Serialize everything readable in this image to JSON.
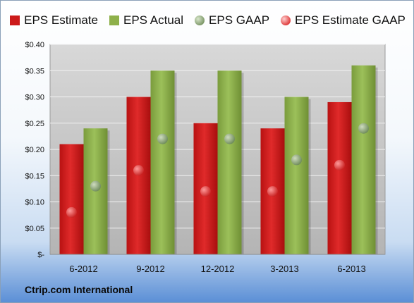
{
  "chart_data": {
    "type": "bar",
    "categories": [
      "6-2012",
      "9-2012",
      "12-2012",
      "3-2013",
      "6-2013"
    ],
    "series": [
      {
        "name": "EPS Estimate",
        "kind": "bar",
        "color": "#cc1a1a",
        "values": [
          0.21,
          0.3,
          0.25,
          0.24,
          0.29
        ]
      },
      {
        "name": "EPS Actual",
        "kind": "bar",
        "color": "#8eb04a",
        "values": [
          0.24,
          0.35,
          0.35,
          0.3,
          0.36
        ]
      },
      {
        "name": "EPS GAAP",
        "kind": "dot",
        "color": "#7f9a6a",
        "values": [
          0.13,
          0.22,
          0.22,
          0.18,
          0.24
        ]
      },
      {
        "name": "EPS Estimate GAAP",
        "kind": "dot",
        "color": "#e04040",
        "values": [
          0.08,
          0.16,
          0.12,
          0.12,
          0.17
        ]
      }
    ],
    "yticks": [
      "$-",
      "$0.05",
      "$0.10",
      "$0.15",
      "$0.20",
      "$0.25",
      "$0.30",
      "$0.35",
      "$0.40"
    ],
    "ylim": [
      0,
      0.4
    ],
    "grid": true,
    "legend_position": "top"
  },
  "footer": {
    "company": "Ctrip.com International"
  }
}
